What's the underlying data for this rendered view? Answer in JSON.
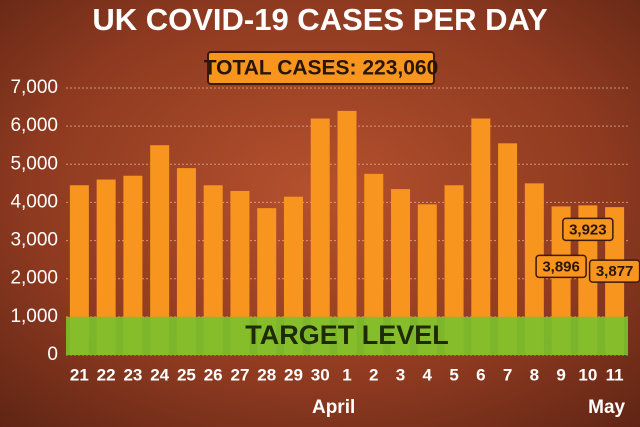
{
  "chart_data": {
    "type": "bar",
    "title": "UK COVID-19 CASES PER DAY",
    "subtitle": "TOTAL CASES: 223,060",
    "categories": [
      "21",
      "22",
      "23",
      "24",
      "25",
      "26",
      "27",
      "28",
      "29",
      "30",
      "1",
      "2",
      "3",
      "4",
      "5",
      "6",
      "7",
      "8",
      "9",
      "10",
      "11"
    ],
    "values": [
      4450,
      4600,
      4700,
      5500,
      4900,
      4450,
      4300,
      3850,
      4150,
      6200,
      6400,
      4750,
      4350,
      3950,
      4450,
      6200,
      5550,
      4500,
      3896,
      3923,
      3877
    ],
    "value_labels": [
      null,
      null,
      null,
      null,
      null,
      null,
      null,
      null,
      null,
      null,
      null,
      null,
      null,
      null,
      null,
      null,
      null,
      null,
      "3,896",
      "3,923",
      "3,877"
    ],
    "color": "#f7951f",
    "ylim": [
      0,
      7000
    ],
    "yticks": [
      0,
      {
        "value": 1000,
        "label": "1,000"
      },
      {
        "value": 2000,
        "label": "2,000"
      },
      {
        "value": 3000,
        "label": "3,000"
      },
      {
        "value": 4000,
        "label": "4,000"
      },
      {
        "value": 5000,
        "label": "5,000"
      },
      {
        "value": 6000,
        "label": "6,000"
      },
      {
        "value": 7000,
        "label": "7,000"
      }
    ],
    "grid": true,
    "target_band": {
      "label": "TARGET LEVEL",
      "range": [
        0,
        1000
      ],
      "color": "#7cc02c"
    },
    "annotations": [
      "April",
      "May"
    ]
  }
}
